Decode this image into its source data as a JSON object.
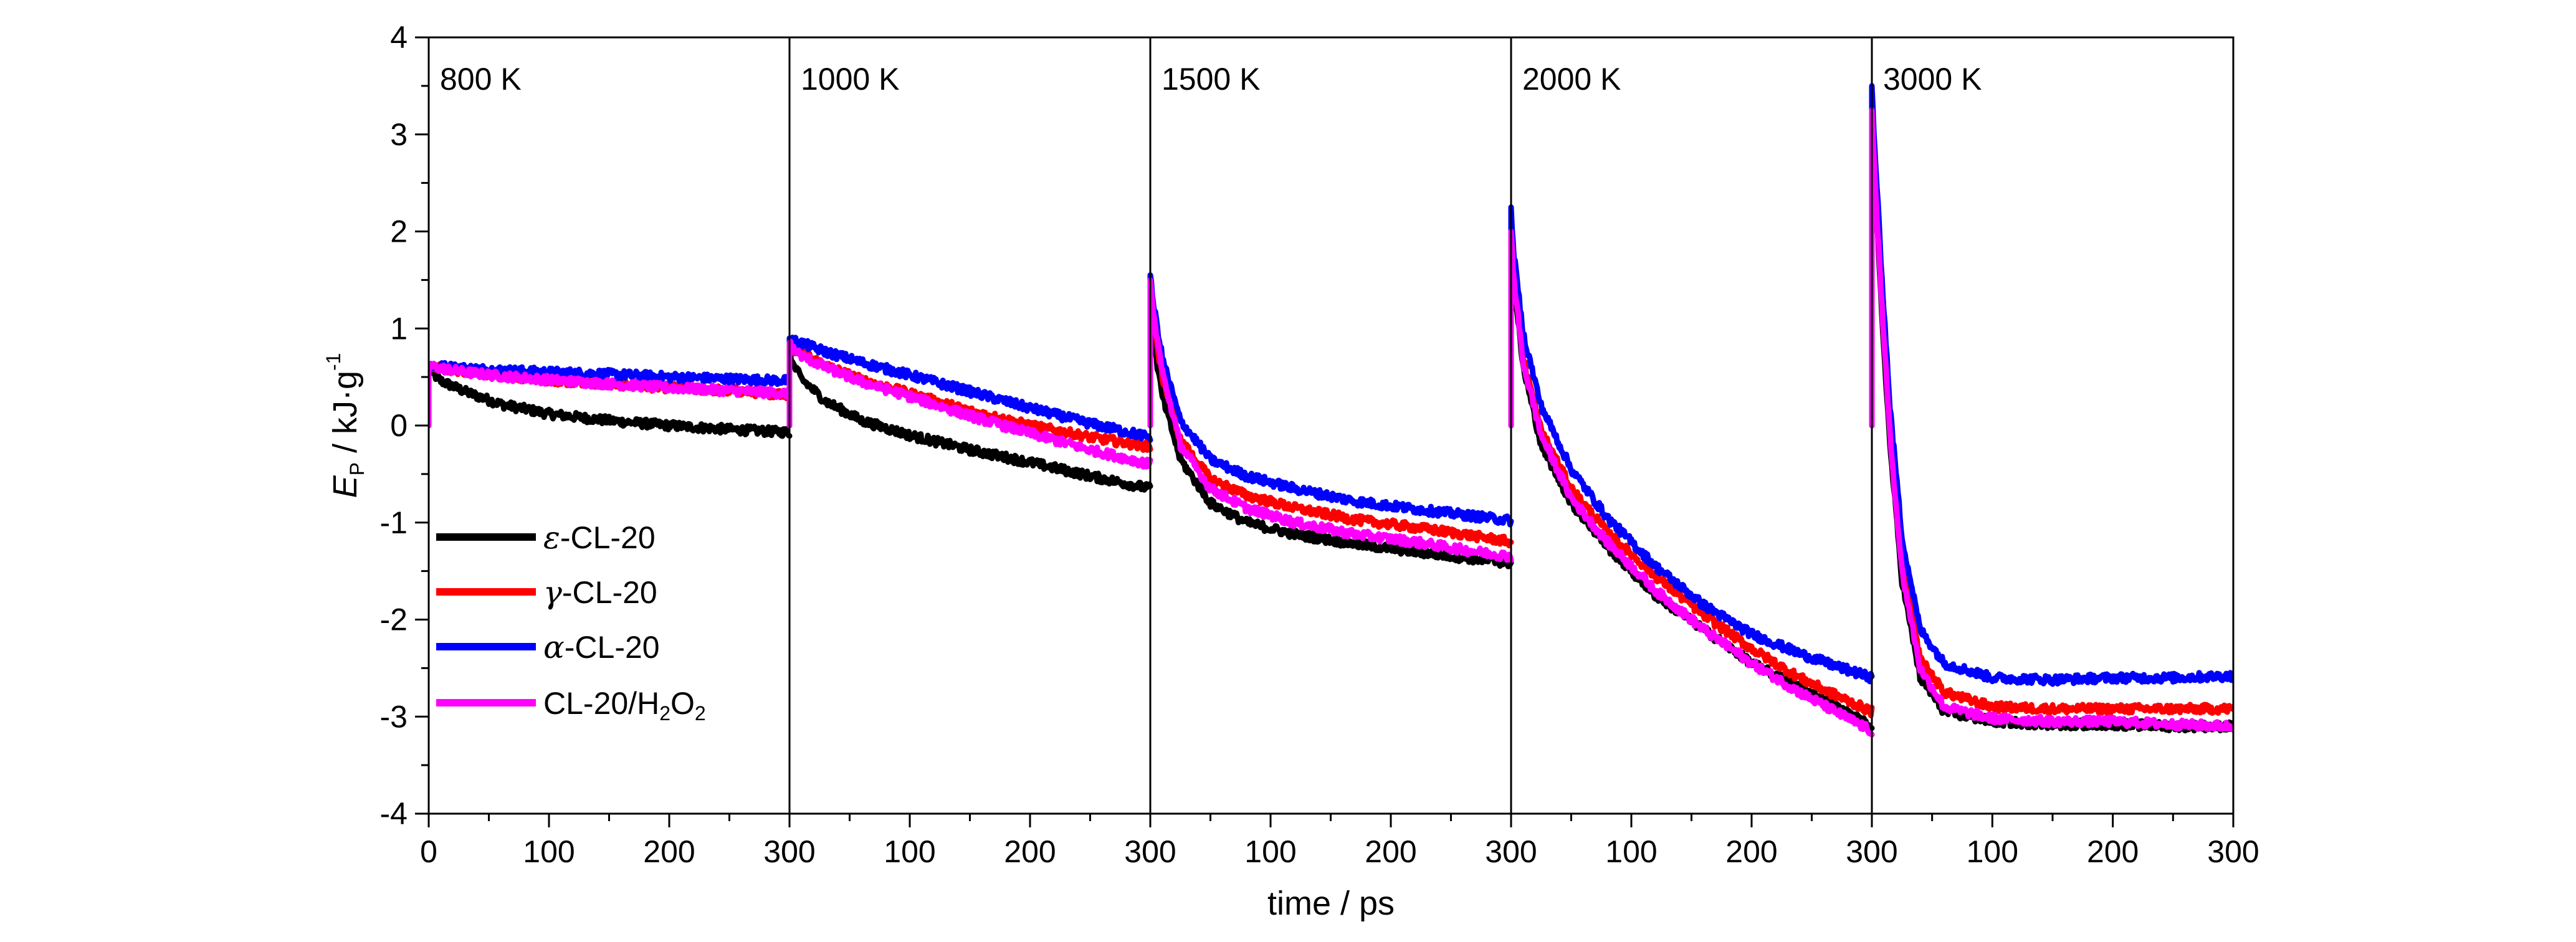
{
  "chart_data": {
    "type": "line",
    "xlabel": "time / ps",
    "ylabel": {
      "main": "E",
      "sub": "P",
      "unit": " / kJ·g",
      "sup": "-1"
    },
    "ylim": [
      -4,
      4
    ],
    "yticks": [
      "-4",
      "-3",
      "-2",
      "-1",
      "0",
      "1",
      "2",
      "3",
      "4"
    ],
    "xlim": [
      0,
      300
    ],
    "xticks": [
      "0",
      "100",
      "200",
      "300"
    ],
    "grid": false,
    "legend_position": "lower-left of first panel",
    "legend": [
      {
        "greek": "ε",
        "rest": "-CL-20",
        "color": "#000000"
      },
      {
        "greek": "γ",
        "rest": "-CL-20",
        "color": "#ff0000"
      },
      {
        "greek": "α",
        "rest": "-CL-20",
        "color": "#0000ff"
      },
      {
        "greek": "",
        "rest": "CL-20/H",
        "sub1": "2",
        "mid": "O",
        "sub2": "2",
        "color": "#ff00ff"
      }
    ],
    "panels": [
      {
        "label": "800 K",
        "series": [
          {
            "color": "#000000",
            "x": [
              0,
              2,
              10,
              30,
              60,
              100,
              150,
              200,
              250,
              300
            ],
            "y": [
              0.6,
              0.55,
              0.46,
              0.35,
              0.22,
              0.12,
              0.05,
              0.0,
              -0.04,
              -0.07
            ]
          },
          {
            "color": "#ff0000",
            "x": [
              0,
              2,
              10,
              30,
              60,
              100,
              150,
              200,
              250,
              300
            ],
            "y": [
              0.62,
              0.62,
              0.6,
              0.56,
              0.52,
              0.47,
              0.43,
              0.39,
              0.36,
              0.32
            ]
          },
          {
            "color": "#0000ff",
            "x": [
              0,
              2,
              10,
              30,
              60,
              100,
              150,
              200,
              250,
              300
            ],
            "y": [
              0.62,
              0.62,
              0.61,
              0.59,
              0.57,
              0.55,
              0.53,
              0.5,
              0.48,
              0.46
            ]
          },
          {
            "color": "#ff00ff",
            "x": [
              0,
              2,
              10,
              30,
              60,
              100,
              150,
              200,
              250,
              300
            ],
            "y": [
              0.6,
              0.61,
              0.59,
              0.55,
              0.51,
              0.47,
              0.43,
              0.39,
              0.36,
              0.33
            ]
          }
        ]
      },
      {
        "label": "1000 K",
        "series": [
          {
            "color": "#000000",
            "x": [
              0,
              2,
              10,
              30,
              60,
              100,
              150,
              200,
              250,
              300
            ],
            "y": [
              0.8,
              0.65,
              0.48,
              0.25,
              0.05,
              -0.1,
              -0.25,
              -0.38,
              -0.52,
              -0.65
            ]
          },
          {
            "color": "#ff0000",
            "x": [
              0,
              2,
              10,
              30,
              60,
              100,
              150,
              200,
              250,
              300
            ],
            "y": [
              0.85,
              0.8,
              0.75,
              0.62,
              0.47,
              0.33,
              0.15,
              0.0,
              -0.12,
              -0.22
            ]
          },
          {
            "color": "#0000ff",
            "x": [
              0,
              2,
              10,
              30,
              60,
              100,
              150,
              200,
              250,
              300
            ],
            "y": [
              0.9,
              0.88,
              0.85,
              0.76,
              0.65,
              0.52,
              0.35,
              0.18,
              0.02,
              -0.12
            ]
          },
          {
            "color": "#ff00ff",
            "x": [
              0,
              2,
              10,
              30,
              60,
              100,
              150,
              200,
              250,
              300
            ],
            "y": [
              0.85,
              0.8,
              0.72,
              0.6,
              0.45,
              0.3,
              0.1,
              -0.08,
              -0.25,
              -0.4
            ]
          }
        ]
      },
      {
        "label": "1500 K",
        "series": [
          {
            "color": "#000000",
            "x": [
              0,
              2,
              10,
              25,
              50,
              80,
              120,
              170,
              220,
              260,
              300
            ],
            "y": [
              1.2,
              0.9,
              0.3,
              -0.35,
              -0.8,
              -1.0,
              -1.12,
              -1.22,
              -1.3,
              -1.36,
              -1.42
            ]
          },
          {
            "color": "#ff0000",
            "x": [
              0,
              2,
              10,
              25,
              50,
              80,
              120,
              170,
              220,
              260,
              300
            ],
            "y": [
              1.4,
              1.1,
              0.5,
              -0.15,
              -0.55,
              -0.72,
              -0.85,
              -0.97,
              -1.05,
              -1.12,
              -1.2
            ]
          },
          {
            "color": "#0000ff",
            "x": [
              0,
              2,
              10,
              25,
              50,
              80,
              120,
              170,
              220,
              260,
              300
            ],
            "y": [
              1.55,
              1.3,
              0.7,
              0.05,
              -0.35,
              -0.52,
              -0.65,
              -0.78,
              -0.86,
              -0.92,
              -0.98
            ]
          },
          {
            "color": "#ff00ff",
            "x": [
              0,
              2,
              10,
              25,
              50,
              80,
              120,
              170,
              220,
              260,
              300
            ],
            "y": [
              1.5,
              1.2,
              0.55,
              -0.2,
              -0.65,
              -0.85,
              -1.0,
              -1.12,
              -1.2,
              -1.28,
              -1.35
            ]
          }
        ]
      },
      {
        "label": "2000 K",
        "series": [
          {
            "color": "#000000",
            "x": [
              0,
              2,
              10,
              25,
              50,
              80,
              120,
              160,
              200,
              240,
              270,
              300
            ],
            "y": [
              2.0,
              1.5,
              0.6,
              -0.2,
              -0.8,
              -1.25,
              -1.75,
              -2.1,
              -2.45,
              -2.7,
              -2.9,
              -3.1
            ]
          },
          {
            "color": "#ff0000",
            "x": [
              0,
              2,
              10,
              25,
              50,
              80,
              120,
              160,
              200,
              240,
              270,
              300
            ],
            "y": [
              2.1,
              1.6,
              0.7,
              -0.05,
              -0.65,
              -1.1,
              -1.55,
              -1.95,
              -2.3,
              -2.6,
              -2.78,
              -2.95
            ]
          },
          {
            "color": "#0000ff",
            "x": [
              0,
              2,
              10,
              25,
              50,
              80,
              120,
              160,
              200,
              240,
              270,
              300
            ],
            "y": [
              2.25,
              1.8,
              0.95,
              0.2,
              -0.45,
              -0.95,
              -1.45,
              -1.85,
              -2.15,
              -2.35,
              -2.48,
              -2.6
            ]
          },
          {
            "color": "#ff00ff",
            "x": [
              0,
              2,
              10,
              25,
              50,
              80,
              120,
              160,
              200,
              240,
              270,
              300
            ],
            "y": [
              2.0,
              1.55,
              0.65,
              -0.1,
              -0.75,
              -1.2,
              -1.7,
              -2.1,
              -2.45,
              -2.75,
              -2.95,
              -3.15
            ]
          }
        ]
      },
      {
        "label": "3000 K",
        "series": [
          {
            "color": "#000000",
            "x": [
              0,
              2,
              8,
              15,
              25,
              40,
              60,
              100,
              150,
              200,
              250,
              300
            ],
            "y": [
              3.2,
              2.6,
              1.2,
              -0.2,
              -1.6,
              -2.6,
              -2.95,
              -3.05,
              -3.08,
              -3.08,
              -3.1,
              -3.1
            ]
          },
          {
            "color": "#ff0000",
            "x": [
              0,
              2,
              8,
              15,
              25,
              40,
              60,
              100,
              150,
              200,
              250,
              300
            ],
            "y": [
              3.3,
              2.7,
              1.35,
              -0.05,
              -1.4,
              -2.4,
              -2.75,
              -2.9,
              -2.92,
              -2.92,
              -2.92,
              -2.92
            ]
          },
          {
            "color": "#0000ff",
            "x": [
              0,
              2,
              8,
              15,
              25,
              40,
              60,
              100,
              150,
              200,
              250,
              300
            ],
            "y": [
              3.5,
              2.95,
              1.6,
              0.2,
              -1.15,
              -2.1,
              -2.45,
              -2.6,
              -2.62,
              -2.6,
              -2.6,
              -2.58
            ]
          },
          {
            "color": "#ff00ff",
            "x": [
              0,
              2,
              8,
              15,
              25,
              40,
              60,
              100,
              150,
              200,
              250,
              300
            ],
            "y": [
              3.25,
              2.65,
              1.3,
              -0.1,
              -1.5,
              -2.5,
              -2.9,
              -3.02,
              -3.05,
              -3.05,
              -3.08,
              -3.1
            ]
          }
        ]
      }
    ]
  }
}
